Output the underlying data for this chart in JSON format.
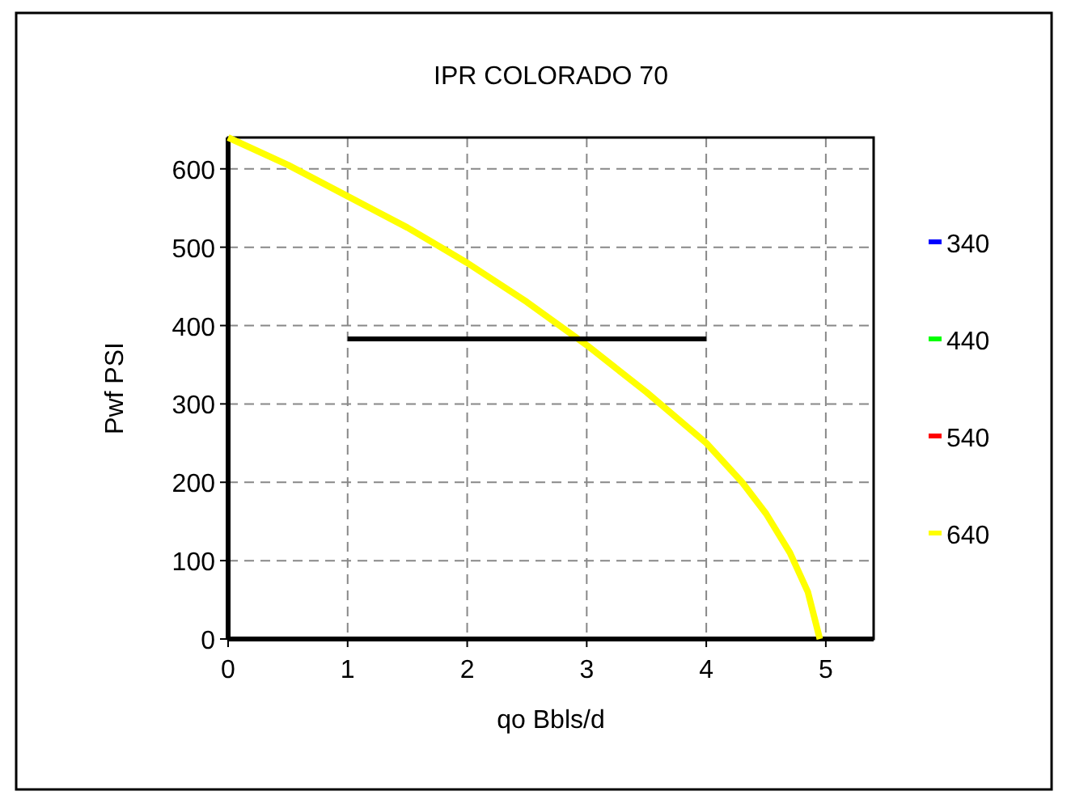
{
  "chart_data": {
    "type": "line",
    "title": "IPR COLORADO 70",
    "xlabel": "qo Bbls/d",
    "ylabel": "Pwf PSI",
    "xlim": [
      0,
      5.4
    ],
    "ylim": [
      0,
      640
    ],
    "xticks": [
      0,
      1,
      2,
      3,
      4,
      5
    ],
    "yticks": [
      0,
      100,
      200,
      300,
      400,
      500,
      600
    ],
    "grid": true,
    "legend": "right",
    "line_style": "solid",
    "marker": "none",
    "series": [
      {
        "name": "340",
        "color": "#0000ff"
      },
      {
        "name": "440",
        "color": "#00ff00"
      },
      {
        "name": "540",
        "color": "#ff0000"
      },
      {
        "name": "640",
        "color": "#ffff00",
        "x": [
          0,
          0.5,
          1,
          1.5,
          2,
          2.5,
          3,
          3.5,
          4,
          4.3,
          4.5,
          4.7,
          4.85,
          4.95
        ],
        "values": [
          640,
          605,
          565,
          525,
          480,
          430,
          375,
          315,
          250,
          200,
          160,
          110,
          60,
          0
        ]
      },
      {
        "color": "#000000",
        "x": [
          1,
          4
        ],
        "values": [
          383,
          383
        ]
      }
    ]
  }
}
